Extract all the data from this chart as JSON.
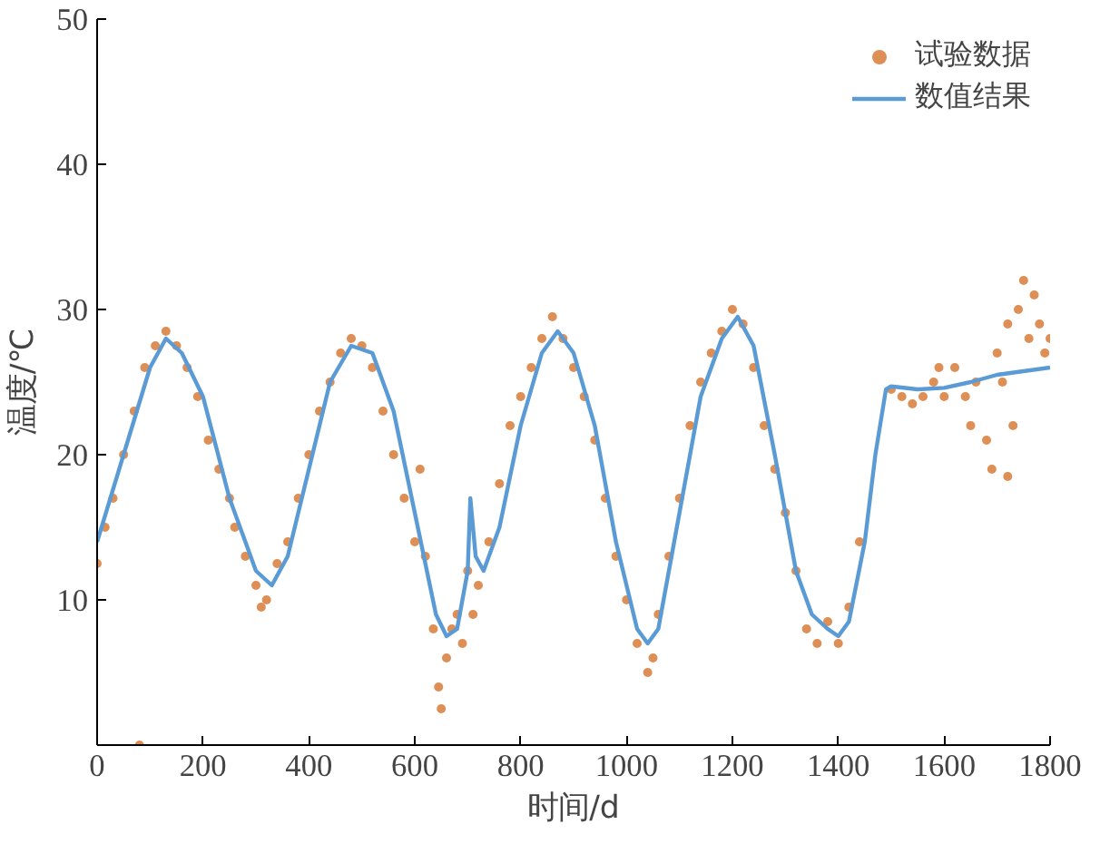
{
  "chart_data": {
    "type": "scatter",
    "xlabel": "时间/d",
    "ylabel": "温度/℃",
    "xlim": [
      0,
      1800
    ],
    "ylim": [
      0,
      50
    ],
    "xticks": [
      0,
      200,
      400,
      600,
      800,
      1000,
      1200,
      1400,
      1600,
      1800
    ],
    "yticks": [
      {
        "value": 0,
        "label": null
      },
      10,
      20,
      30,
      40,
      50
    ],
    "grid": false,
    "legend": "top right",
    "tick_labels": true,
    "series": [
      {
        "name": "试验数据",
        "marker": "circle",
        "color": "#d2691e",
        "x": [
          0,
          15,
          30,
          50,
          70,
          80,
          90,
          110,
          130,
          150,
          170,
          190,
          210,
          230,
          250,
          260,
          280,
          300,
          310,
          320,
          340,
          360,
          380,
          400,
          420,
          440,
          460,
          480,
          500,
          520,
          540,
          560,
          580,
          600,
          610,
          620,
          635,
          645,
          650,
          660,
          670,
          680,
          690,
          700,
          710,
          720,
          740,
          760,
          780,
          800,
          820,
          840,
          860,
          880,
          900,
          920,
          940,
          960,
          980,
          1000,
          1020,
          1040,
          1050,
          1060,
          1080,
          1100,
          1120,
          1140,
          1160,
          1180,
          1200,
          1220,
          1240,
          1260,
          1280,
          1300,
          1320,
          1340,
          1360,
          1380,
          1400,
          1420,
          1440,
          1500,
          1520,
          1540,
          1560,
          1580,
          1590,
          1600,
          1620,
          1640,
          1650,
          1660,
          1680,
          1690,
          1700,
          1710,
          1720,
          1720,
          1730,
          1740,
          1750,
          1760,
          1770,
          1780,
          1790,
          1800
        ],
        "values": [
          12.5,
          15,
          17,
          20,
          23,
          0,
          26,
          27.5,
          28.5,
          27.5,
          26,
          24,
          21,
          19,
          17,
          15,
          13,
          11,
          9.5,
          10,
          12.5,
          14,
          17,
          20,
          23,
          25,
          27,
          28,
          27.5,
          26,
          23,
          20,
          17,
          14,
          19,
          13,
          8,
          4,
          2.5,
          6,
          8,
          9,
          7,
          12,
          9,
          11,
          14,
          18,
          22,
          24,
          26,
          28,
          29.5,
          28,
          26,
          24,
          21,
          17,
          13,
          10,
          7,
          5,
          6,
          9,
          13,
          17,
          22,
          25,
          27,
          28.5,
          30,
          29,
          26,
          22,
          19,
          16,
          12,
          8,
          7,
          8.5,
          7,
          9.5,
          14,
          24.5,
          24,
          23.5,
          24,
          25,
          26,
          24,
          26,
          24,
          22,
          25,
          21,
          19,
          27,
          25,
          29,
          18.5,
          22,
          30,
          32,
          28,
          31,
          29,
          27,
          28
        ]
      },
      {
        "name": "数值结果",
        "type": "line",
        "marker": "none",
        "line_style": "solid",
        "color": "#5b9bd5",
        "x": [
          0,
          50,
          100,
          130,
          160,
          200,
          250,
          300,
          330,
          360,
          400,
          440,
          480,
          520,
          560,
          600,
          640,
          660,
          680,
          700,
          705,
          715,
          730,
          760,
          800,
          840,
          870,
          900,
          940,
          980,
          1020,
          1040,
          1060,
          1100,
          1140,
          1180,
          1210,
          1240,
          1280,
          1320,
          1350,
          1380,
          1400,
          1420,
          1450,
          1470,
          1490,
          1500,
          1550,
          1600,
          1650,
          1700,
          1800
        ],
        "values": [
          14,
          20,
          26,
          28,
          27,
          24,
          17,
          12,
          11,
          13,
          19,
          25,
          27.5,
          27,
          23,
          16,
          9,
          7.5,
          8,
          12,
          17,
          13,
          12,
          15,
          22,
          27,
          28.5,
          27,
          22,
          14,
          8,
          7,
          8,
          16,
          24,
          28,
          29.5,
          27.5,
          20,
          12,
          9,
          8,
          7.5,
          8.5,
          14,
          20,
          24.5,
          24.7,
          24.5,
          24.6,
          25,
          25.5,
          26
        ]
      }
    ]
  }
}
